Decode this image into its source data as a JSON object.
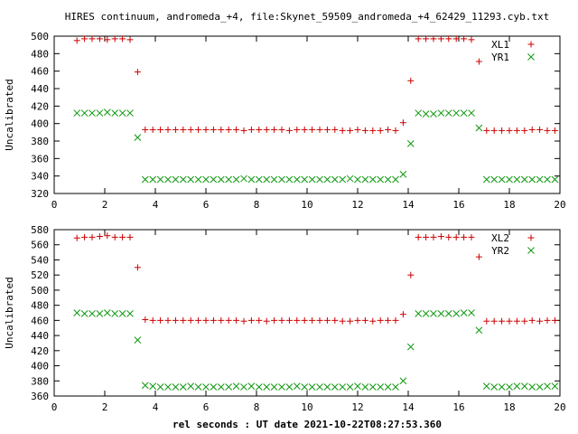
{
  "title": "HIRES continuum, andromeda_+4, file:Skynet_59509_andromeda_+4_62429_11293.cyb.txt",
  "xlabel": "rel seconds : UT date 2021-10-22T08:27:53.360",
  "colors": {
    "red": "#cc0000",
    "green": "#119911"
  },
  "chart_data": [
    {
      "type": "scatter",
      "title": "HIRES continuum, andromeda_+4, file:Skynet_59509_andromeda_+4_62429_11293.cyb.txt",
      "ylabel": "Uncalibrated",
      "xlim": [
        0,
        20
      ],
      "ylim": [
        320,
        500
      ],
      "xticks": [
        "0",
        "2",
        "4",
        "6",
        "8",
        "10",
        "12",
        "14",
        "16",
        "18",
        "20"
      ],
      "yticks": [
        "320",
        "340",
        "360",
        "380",
        "400",
        "420",
        "440",
        "460",
        "480",
        "500"
      ],
      "legend": "top-right",
      "series": [
        {
          "name": "XL1",
          "marker": "plus",
          "color": "#cc0000",
          "x": [
            0.9,
            1.2,
            1.5,
            1.8,
            2.1,
            2.4,
            2.7,
            3.0,
            3.3,
            3.6,
            3.9,
            4.2,
            4.5,
            4.8,
            5.1,
            5.4,
            5.7,
            6.0,
            6.3,
            6.6,
            6.9,
            7.2,
            7.5,
            7.8,
            8.1,
            8.4,
            8.7,
            9.0,
            9.3,
            9.6,
            9.9,
            10.2,
            10.5,
            10.8,
            11.1,
            11.4,
            11.7,
            12.0,
            12.3,
            12.6,
            12.9,
            13.2,
            13.5,
            13.8,
            14.1,
            14.4,
            14.7,
            15.0,
            15.3,
            15.6,
            15.9,
            16.2,
            16.5,
            16.8,
            17.1,
            17.4,
            17.7,
            18.0,
            18.3,
            18.6,
            18.9,
            19.2,
            19.5,
            19.8
          ],
          "y": [
            495,
            497,
            497,
            497,
            496,
            497,
            497,
            496,
            459,
            393,
            393,
            393,
            393,
            393,
            393,
            393,
            393,
            393,
            393,
            393,
            393,
            393,
            392,
            393,
            393,
            393,
            393,
            393,
            392,
            393,
            393,
            393,
            393,
            393,
            393,
            392,
            392,
            393,
            392,
            392,
            392,
            393,
            392,
            401,
            449,
            497,
            497,
            497,
            497,
            497,
            497,
            497,
            496,
            471,
            392,
            392,
            392,
            392,
            392,
            392,
            393,
            393,
            392,
            392
          ]
        },
        {
          "name": "YR1",
          "marker": "cross",
          "color": "#119911",
          "x": [
            0.9,
            1.2,
            1.5,
            1.8,
            2.1,
            2.4,
            2.7,
            3.0,
            3.3,
            3.6,
            3.9,
            4.2,
            4.5,
            4.8,
            5.1,
            5.4,
            5.7,
            6.0,
            6.3,
            6.6,
            6.9,
            7.2,
            7.5,
            7.8,
            8.1,
            8.4,
            8.7,
            9.0,
            9.3,
            9.6,
            9.9,
            10.2,
            10.5,
            10.8,
            11.1,
            11.4,
            11.7,
            12.0,
            12.3,
            12.6,
            12.9,
            13.2,
            13.5,
            13.8,
            14.1,
            14.4,
            14.7,
            15.0,
            15.3,
            15.6,
            15.9,
            16.2,
            16.5,
            16.8,
            17.1,
            17.4,
            17.7,
            18.0,
            18.3,
            18.6,
            18.9,
            19.2,
            19.5,
            19.8
          ],
          "y": [
            412,
            412,
            412,
            412,
            413,
            412,
            412,
            412,
            384,
            336,
            336,
            336,
            336,
            336,
            336,
            336,
            336,
            336,
            336,
            336,
            336,
            336,
            337,
            336,
            336,
            336,
            336,
            336,
            336,
            336,
            336,
            336,
            336,
            336,
            336,
            336,
            337,
            336,
            336,
            336,
            336,
            336,
            336,
            342,
            377,
            412,
            411,
            411,
            412,
            412,
            412,
            412,
            412,
            395,
            336,
            336,
            336,
            336,
            336,
            336,
            336,
            336,
            336,
            336
          ]
        }
      ]
    },
    {
      "type": "scatter",
      "title": "",
      "ylabel": "Uncalibrated",
      "xlim": [
        0,
        20
      ],
      "ylim": [
        360,
        580
      ],
      "xticks": [
        "0",
        "2",
        "4",
        "6",
        "8",
        "10",
        "12",
        "14",
        "16",
        "18",
        "20"
      ],
      "yticks": [
        "360",
        "380",
        "400",
        "420",
        "440",
        "460",
        "480",
        "500",
        "520",
        "540",
        "560",
        "580"
      ],
      "legend": "top-right",
      "series": [
        {
          "name": "XL2",
          "marker": "plus",
          "color": "#cc0000",
          "x": [
            0.9,
            1.2,
            1.5,
            1.8,
            2.1,
            2.4,
            2.7,
            3.0,
            3.3,
            3.6,
            3.9,
            4.2,
            4.5,
            4.8,
            5.1,
            5.4,
            5.7,
            6.0,
            6.3,
            6.6,
            6.9,
            7.2,
            7.5,
            7.8,
            8.1,
            8.4,
            8.7,
            9.0,
            9.3,
            9.6,
            9.9,
            10.2,
            10.5,
            10.8,
            11.1,
            11.4,
            11.7,
            12.0,
            12.3,
            12.6,
            12.9,
            13.2,
            13.5,
            13.8,
            14.1,
            14.4,
            14.7,
            15.0,
            15.3,
            15.6,
            15.9,
            16.2,
            16.5,
            16.8,
            17.1,
            17.4,
            17.7,
            18.0,
            18.3,
            18.6,
            18.9,
            19.2,
            19.5,
            19.8
          ],
          "y": [
            569,
            570,
            570,
            571,
            572,
            570,
            570,
            570,
            530,
            461,
            460,
            460,
            460,
            460,
            460,
            460,
            460,
            460,
            460,
            460,
            460,
            460,
            459,
            460,
            460,
            459,
            460,
            460,
            460,
            460,
            460,
            460,
            460,
            460,
            460,
            459,
            459,
            460,
            460,
            459,
            460,
            460,
            460,
            468,
            520,
            570,
            570,
            570,
            571,
            570,
            570,
            570,
            570,
            544,
            459,
            459,
            459,
            459,
            459,
            459,
            460,
            459,
            460,
            460
          ]
        },
        {
          "name": "YR2",
          "marker": "cross",
          "color": "#119911",
          "x": [
            0.9,
            1.2,
            1.5,
            1.8,
            2.1,
            2.4,
            2.7,
            3.0,
            3.3,
            3.6,
            3.9,
            4.2,
            4.5,
            4.8,
            5.1,
            5.4,
            5.7,
            6.0,
            6.3,
            6.6,
            6.9,
            7.2,
            7.5,
            7.8,
            8.1,
            8.4,
            8.7,
            9.0,
            9.3,
            9.6,
            9.9,
            10.2,
            10.5,
            10.8,
            11.1,
            11.4,
            11.7,
            12.0,
            12.3,
            12.6,
            12.9,
            13.2,
            13.5,
            13.8,
            14.1,
            14.4,
            14.7,
            15.0,
            15.3,
            15.6,
            15.9,
            16.2,
            16.5,
            16.8,
            17.1,
            17.4,
            17.7,
            18.0,
            18.3,
            18.6,
            18.9,
            19.2,
            19.5,
            19.8
          ],
          "y": [
            470,
            469,
            469,
            469,
            470,
            469,
            469,
            469,
            434,
            374,
            373,
            372,
            372,
            372,
            372,
            373,
            372,
            372,
            372,
            372,
            372,
            373,
            372,
            373,
            372,
            372,
            372,
            372,
            372,
            373,
            372,
            372,
            372,
            372,
            372,
            372,
            372,
            373,
            372,
            372,
            372,
            372,
            372,
            380,
            425,
            469,
            469,
            469,
            469,
            469,
            469,
            470,
            470,
            447,
            373,
            372,
            372,
            372,
            373,
            373,
            372,
            372,
            373,
            373
          ]
        }
      ]
    }
  ]
}
